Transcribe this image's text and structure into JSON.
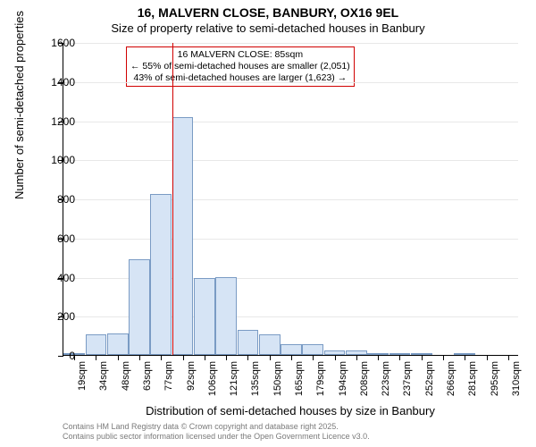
{
  "titles": {
    "main": "16, MALVERN CLOSE, BANBURY, OX16 9EL",
    "sub": "Size of property relative to semi-detached houses in Banbury",
    "y_axis": "Number of semi-detached properties",
    "x_axis": "Distribution of semi-detached houses by size in Banbury"
  },
  "chart": {
    "type": "histogram",
    "background_color": "#ffffff",
    "grid_color": "#e8e8e8",
    "axis_color": "#000000",
    "bar_fill": "#d6e4f5",
    "bar_border": "#7a9bc4",
    "reference_line_color": "#d00000",
    "ylim": [
      0,
      1600
    ],
    "ytick_step": 200,
    "y_ticks": [
      0,
      200,
      400,
      600,
      800,
      1000,
      1200,
      1400,
      1600
    ],
    "x_labels": [
      "19sqm",
      "34sqm",
      "48sqm",
      "63sqm",
      "77sqm",
      "92sqm",
      "106sqm",
      "121sqm",
      "135sqm",
      "150sqm",
      "165sqm",
      "179sqm",
      "194sqm",
      "208sqm",
      "223sqm",
      "237sqm",
      "252sqm",
      "266sqm",
      "281sqm",
      "295sqm",
      "310sqm"
    ],
    "bars": [
      {
        "x": 19,
        "count": 5
      },
      {
        "x": 34,
        "count": 105
      },
      {
        "x": 48,
        "count": 110
      },
      {
        "x": 63,
        "count": 490
      },
      {
        "x": 77,
        "count": 825
      },
      {
        "x": 92,
        "count": 1215
      },
      {
        "x": 106,
        "count": 395
      },
      {
        "x": 121,
        "count": 400
      },
      {
        "x": 135,
        "count": 130
      },
      {
        "x": 150,
        "count": 105
      },
      {
        "x": 165,
        "count": 55
      },
      {
        "x": 179,
        "count": 55
      },
      {
        "x": 194,
        "count": 25
      },
      {
        "x": 208,
        "count": 25
      },
      {
        "x": 223,
        "count": 10
      },
      {
        "x": 237,
        "count": 10
      },
      {
        "x": 252,
        "count": 5
      },
      {
        "x": 266,
        "count": 0
      },
      {
        "x": 281,
        "count": 5
      },
      {
        "x": 295,
        "count": 0
      },
      {
        "x": 310,
        "count": 0
      }
    ],
    "reference_value_sqm": 85,
    "x_range": [
      19,
      310
    ],
    "callout": {
      "line1": "16 MALVERN CLOSE: 85sqm",
      "line2": "← 55% of semi-detached houses are smaller (2,051)",
      "line3": "43% of semi-detached houses are larger (1,623) →"
    }
  },
  "footer": {
    "line1": "Contains HM Land Registry data © Crown copyright and database right 2025.",
    "line2": "Contains public sector information licensed under the Open Government Licence v3.0."
  },
  "fonts": {
    "title_fontsize": 14,
    "subtitle_fontsize": 13,
    "axis_label_fontsize": 13,
    "tick_fontsize": 12,
    "x_tick_fontsize": 11,
    "callout_fontsize": 10.5,
    "footer_fontsize": 9
  }
}
